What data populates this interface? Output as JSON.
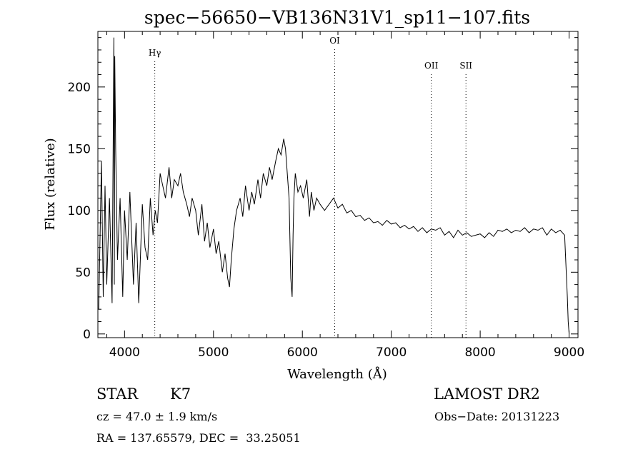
{
  "chart_data": {
    "type": "line",
    "title": "spec−56650−VB136N31V1_sp11−107.fits",
    "xlabel": "Wavelength (Å)",
    "ylabel": "Flux (relative)",
    "xlim": [
      3700,
      9100
    ],
    "ylim": [
      -3,
      245
    ],
    "xticks": [
      4000,
      5000,
      6000,
      7000,
      8000,
      9000
    ],
    "yticks": [
      0,
      50,
      100,
      150,
      200
    ],
    "grid": false,
    "spectral_lines": [
      {
        "label": "Hγ",
        "wavelength": 4340
      },
      {
        "label": "OI",
        "wavelength": 6364
      },
      {
        "label": "OII",
        "wavelength": 7450
      },
      {
        "label": "SII",
        "wavelength": 7840
      }
    ],
    "series": [
      {
        "x": [
          3710,
          3740,
          3760,
          3780,
          3800,
          3830,
          3860,
          3880,
          3885,
          3890,
          3900,
          3920,
          3950,
          3980,
          4000,
          4030,
          4060,
          4100,
          4130,
          4160,
          4200,
          4230,
          4260,
          4290,
          4320,
          4345,
          4370,
          4400,
          4430,
          4460,
          4500,
          4530,
          4560,
          4600,
          4630,
          4660,
          4700,
          4730,
          4760,
          4800,
          4830,
          4870,
          4900,
          4930,
          4960,
          5000,
          5030,
          5060,
          5100,
          5130,
          5160,
          5180,
          5200,
          5230,
          5260,
          5300,
          5330,
          5360,
          5400,
          5430,
          5460,
          5500,
          5530,
          5560,
          5600,
          5630,
          5660,
          5700,
          5730,
          5760,
          5790,
          5810,
          5830,
          5850,
          5870,
          5885,
          5895,
          5905,
          5920,
          5950,
          5980,
          6010,
          6050,
          6080,
          6100,
          6130,
          6160,
          6200,
          6250,
          6300,
          6350,
          6400,
          6450,
          6500,
          6550,
          6600,
          6650,
          6700,
          6750,
          6800,
          6850,
          6900,
          6950,
          7000,
          7050,
          7100,
          7150,
          7200,
          7250,
          7300,
          7350,
          7400,
          7450,
          7500,
          7550,
          7600,
          7650,
          7700,
          7750,
          7800,
          7850,
          7900,
          7950,
          8000,
          8050,
          8100,
          8150,
          8200,
          8250,
          8300,
          8350,
          8400,
          8450,
          8500,
          8550,
          8600,
          8650,
          8700,
          8750,
          8800,
          8850,
          8900,
          8950,
          8980,
          8990,
          9000
        ],
        "values": [
          20,
          140,
          30,
          120,
          40,
          110,
          25,
          240,
          40,
          225,
          150,
          60,
          110,
          30,
          100,
          60,
          115,
          40,
          90,
          25,
          105,
          70,
          60,
          110,
          80,
          100,
          90,
          130,
          120,
          110,
          135,
          110,
          125,
          120,
          130,
          115,
          105,
          95,
          110,
          100,
          80,
          105,
          75,
          90,
          70,
          85,
          65,
          75,
          50,
          65,
          45,
          38,
          60,
          85,
          100,
          110,
          95,
          120,
          100,
          115,
          105,
          125,
          110,
          130,
          120,
          135,
          125,
          140,
          150,
          145,
          158,
          150,
          130,
          110,
          45,
          30,
          80,
          110,
          130,
          115,
          120,
          110,
          125,
          95,
          115,
          100,
          110,
          105,
          100,
          105,
          110,
          102,
          105,
          98,
          100,
          95,
          96,
          92,
          94,
          90,
          91,
          88,
          92,
          89,
          90,
          86,
          88,
          85,
          87,
          83,
          86,
          82,
          85,
          84,
          86,
          80,
          83,
          78,
          84,
          80,
          82,
          79,
          80,
          81,
          78,
          82,
          79,
          84,
          83,
          85,
          82,
          84,
          83,
          86,
          82,
          85,
          84,
          86,
          80,
          85,
          82,
          84,
          80,
          30,
          10,
          0
        ]
      }
    ]
  },
  "info": {
    "object_class": "STAR",
    "subclass": "K7",
    "survey": "LAMOST DR2",
    "redshift": "cz = 47.0 ± 1.9 km/s",
    "obs_date": "Obs−Date: 20131223",
    "coords": "RA = 137.65579, DEC =  33.25051"
  }
}
